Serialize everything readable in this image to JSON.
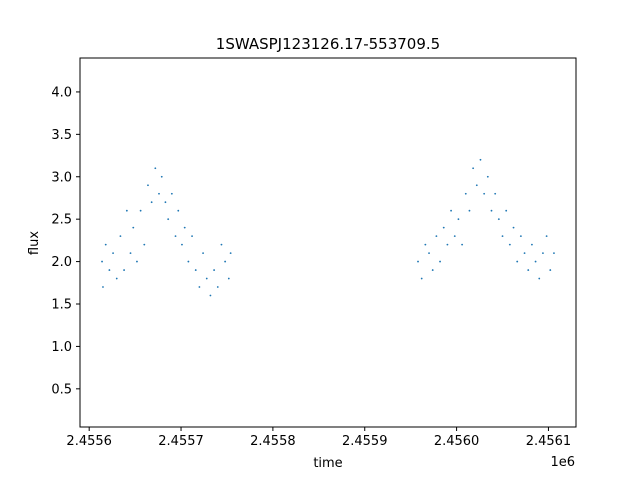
{
  "chart_data": {
    "type": "scatter",
    "title": "1SWASPJ123126.17-553709.5",
    "xlabel": "time",
    "ylabel": "flux",
    "x_offset_label": "1e6",
    "x_ticks": [
      "2.4556",
      "2.4557",
      "2.4558",
      "2.4559",
      "2.4560",
      "2.4561"
    ],
    "y_ticks": [
      "0.5",
      "1.0",
      "1.5",
      "2.0",
      "2.5",
      "3.0",
      "3.5",
      "4.0"
    ],
    "xlim": [
      2455590,
      2456130
    ],
    "ylim": [
      0.05,
      4.4
    ],
    "grid": false,
    "color": "#1f77b4",
    "series": [
      {
        "x": [
          2455614,
          2455615,
          2455618,
          2455622,
          2455626,
          2455630,
          2455634,
          2455638,
          2455641,
          2455645,
          2455648,
          2455652,
          2455656,
          2455660,
          2455664,
          2455668,
          2455672,
          2455676,
          2455679,
          2455683,
          2455686,
          2455690,
          2455694,
          2455697,
          2455701,
          2455704,
          2455708,
          2455712,
          2455716,
          2455720,
          2455724,
          2455728,
          2455732,
          2455736,
          2455740,
          2455744,
          2455748,
          2455752,
          2455754,
          2455958,
          2455962,
          2455966,
          2455970,
          2455974,
          2455978,
          2455982,
          2455986,
          2455990,
          2455994,
          2455998,
          2456002,
          2456006,
          2456010,
          2456014,
          2456018,
          2456022,
          2456026,
          2456030,
          2456034,
          2456038,
          2456042,
          2456046,
          2456050,
          2456054,
          2456058,
          2456062,
          2456066,
          2456070,
          2456074,
          2456078,
          2456082,
          2456086,
          2456090,
          2456094,
          2456098,
          2456102,
          2456106
        ],
        "y": [
          2.0,
          1.7,
          2.2,
          1.9,
          2.1,
          1.8,
          2.3,
          1.9,
          2.6,
          2.1,
          2.4,
          2.0,
          2.6,
          2.2,
          2.9,
          2.7,
          3.1,
          2.8,
          3.0,
          2.7,
          2.5,
          2.8,
          2.3,
          2.6,
          2.2,
          2.4,
          2.0,
          2.3,
          1.9,
          1.7,
          2.1,
          1.8,
          1.6,
          1.9,
          1.7,
          2.2,
          2.0,
          1.8,
          2.1,
          2.0,
          1.8,
          2.2,
          2.1,
          1.9,
          2.3,
          2.0,
          2.4,
          2.2,
          2.6,
          2.3,
          2.5,
          2.2,
          2.8,
          2.6,
          3.1,
          2.9,
          3.2,
          2.8,
          3.0,
          2.6,
          2.8,
          2.5,
          2.3,
          2.6,
          2.2,
          2.4,
          2.0,
          2.3,
          2.1,
          1.9,
          2.2,
          2.0,
          1.8,
          2.1,
          2.3,
          1.9,
          2.1
        ]
      }
    ]
  }
}
